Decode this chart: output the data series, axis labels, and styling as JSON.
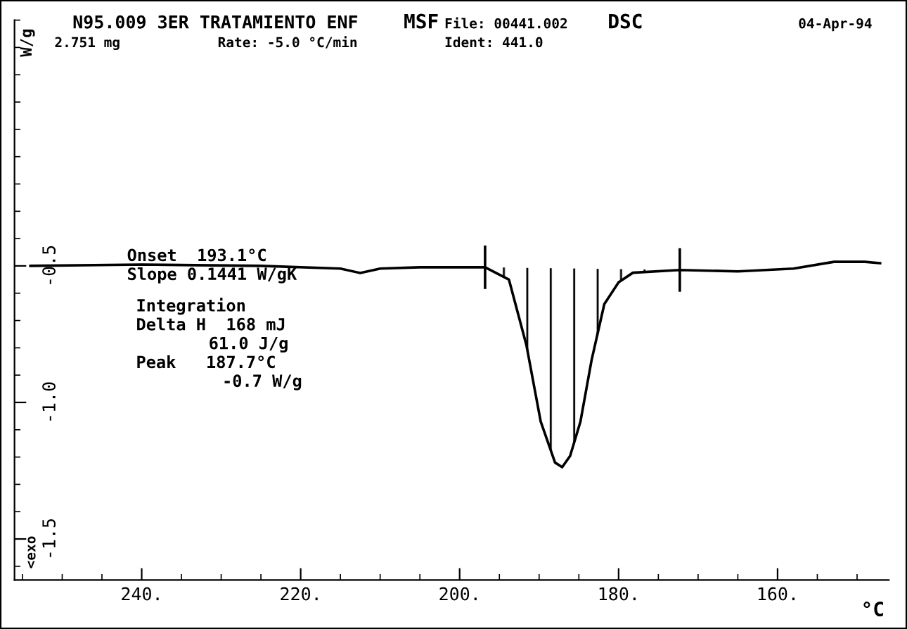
{
  "chart_data": {
    "type": "line",
    "title": "N95.009 3ER TRATAMIENTO ENF",
    "xlabel": "°C",
    "ylabel": "W/g",
    "annotations": [
      "MSF",
      "File: 00441.002",
      "DSC",
      "04-Apr-94",
      "2.751 mg",
      "Rate: -5.0 °C/min",
      "Ident: 441.0",
      "Onset  193.1°C",
      "Slope 0.1441 W/gK",
      "Integration",
      "Delta H  168 mJ",
      "61.0 J/g",
      "Peak   187.7°C",
      "-0.7 W/g",
      "<exo"
    ],
    "series": [
      {
        "color": "#000000",
        "x": [
          254,
          240,
          225,
          215,
          212.5,
          210,
          205,
          200,
          196.8,
          193.8,
          191.6,
          189.8,
          188.0,
          187.1,
          186.1,
          184.8,
          183.4,
          181.8,
          180.0,
          178.2,
          172.3,
          165,
          158,
          152.9,
          149,
          147.1
        ],
        "values": [
          -0.5,
          -0.495,
          -0.5,
          -0.51,
          -0.526,
          -0.51,
          -0.505,
          -0.505,
          -0.505,
          -0.55,
          -0.79,
          -1.07,
          -1.22,
          -1.237,
          -1.196,
          -1.07,
          -0.845,
          -0.64,
          -0.56,
          -0.525,
          -0.515,
          -0.52,
          -0.51,
          -0.485,
          -0.485,
          -0.49
        ]
      },
      {
        "type": "area",
        "color": "#000000",
        "x": [
          196.8,
          193.8,
          191.6,
          189.8,
          188.0,
          187.1,
          186.1,
          184.8,
          183.4,
          181.8,
          180.0,
          178.2,
          172.3
        ],
        "values": [
          -0.505,
          -0.55,
          -0.79,
          -1.07,
          -1.22,
          -1.237,
          -1.196,
          -1.07,
          -0.845,
          -0.64,
          -0.56,
          -0.525,
          -0.515
        ]
      },
      {
        "type": "line",
        "color": "#000000",
        "x": [
          196.8,
          196.8
        ],
        "values": [
          -0.43,
          -0.58
        ]
      },
      {
        "type": "line",
        "color": "#000000",
        "x": [
          172.3,
          172.3
        ],
        "values": [
          -0.44,
          -0.59
        ]
      }
    ],
    "xlim": [
      256,
      146
    ],
    "ylim": [
      -1.65,
      0.4
    ],
    "xticks": [
      {
        "value": 240,
        "label": "240."
      },
      {
        "value": 220,
        "label": "220."
      },
      {
        "value": 200,
        "label": "200."
      },
      {
        "value": 180,
        "label": "180."
      },
      {
        "value": 160,
        "label": "160."
      }
    ],
    "yticks": [
      {
        "value": -0.5,
        "label": "-0.5"
      },
      {
        "value": -1.0,
        "label": "-1.0"
      },
      {
        "value": -1.5,
        "label": "-1.5"
      }
    ],
    "grid": false,
    "legend": false
  }
}
